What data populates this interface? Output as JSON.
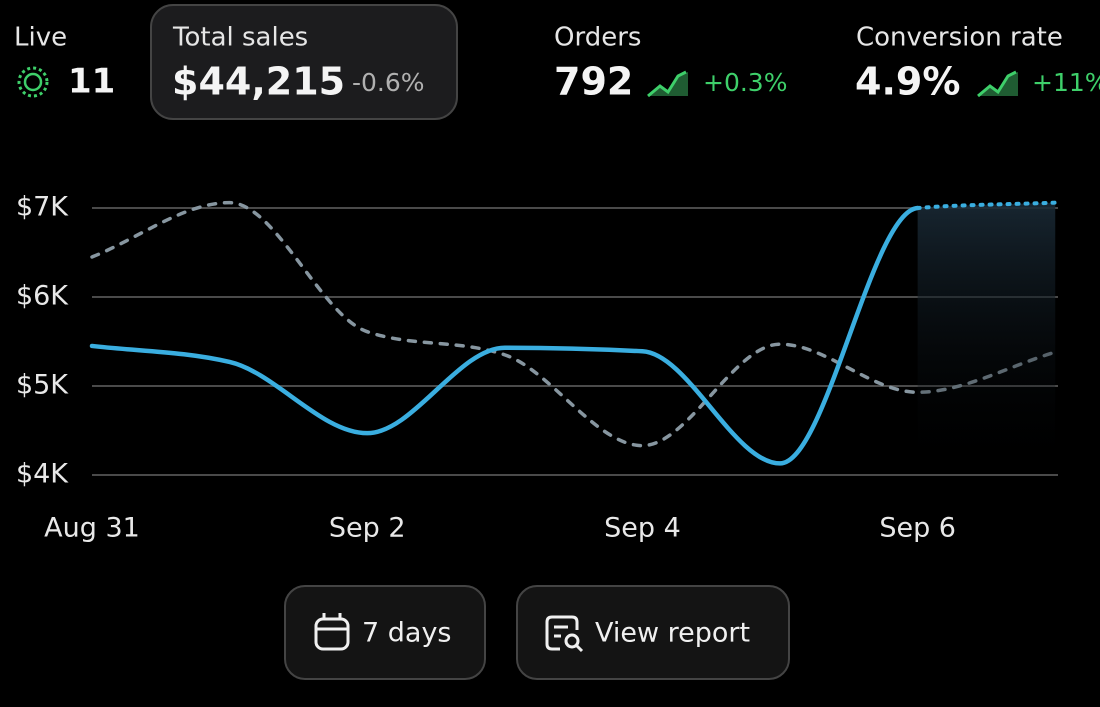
{
  "stats": [
    {
      "label": "Live",
      "value": "11"
    },
    {
      "label": "Total sales",
      "value": "$44,215",
      "change": "-0.6%"
    },
    {
      "label": "Orders",
      "value": "792",
      "change": "+0.3%"
    },
    {
      "label": "Conversion rate",
      "value": "4.9%",
      "change": "+11%"
    }
  ],
  "chart_data": {
    "type": "line",
    "categories": [
      "Aug 31",
      null,
      "Sep 2",
      null,
      "Sep 4",
      null,
      "Sep 6",
      null
    ],
    "series": [
      {
        "color": "#3aaee0",
        "style": "solid",
        "dotted_from": 6,
        "values": [
          5450,
          5270,
          4470,
          5430,
          5390,
          4130,
          7000,
          7060
        ]
      },
      {
        "color": "#8796a0",
        "style": "dashed",
        "values": [
          6450,
          7060,
          5610,
          5350,
          4330,
          5470,
          4930,
          5380
        ]
      }
    ],
    "ylim": [
      4000,
      7000
    ],
    "yticks": [
      {
        "value": 4000,
        "label": "$4K"
      },
      {
        "value": 5000,
        "label": "$5K"
      },
      {
        "value": 6000,
        "label": "$6K"
      },
      {
        "value": 7000,
        "label": "$7K"
      }
    ],
    "grid": true
  },
  "buttons": [
    "7 days",
    "View report"
  ]
}
